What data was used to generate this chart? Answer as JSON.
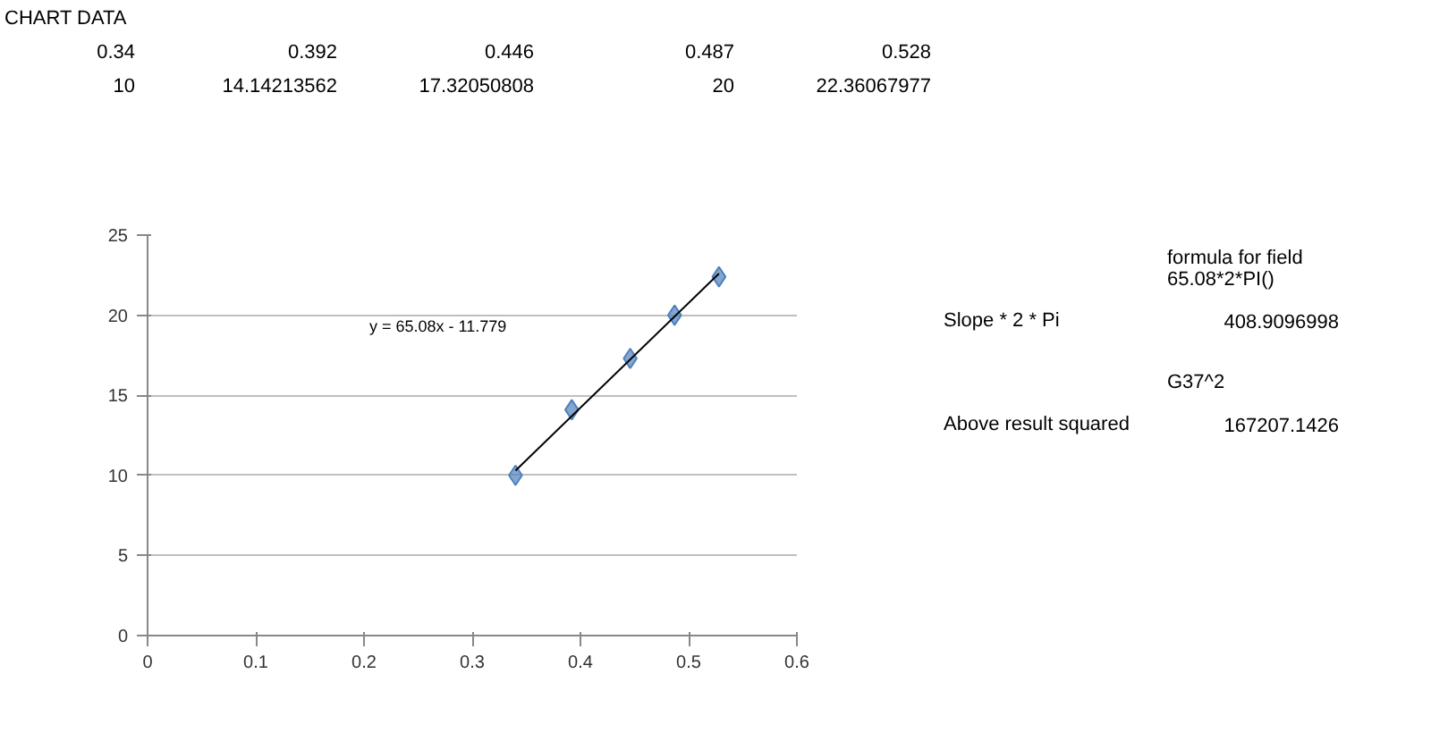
{
  "chart_data": {
    "type": "scatter",
    "title": "CHART DATA",
    "x": [
      0.34,
      0.392,
      0.446,
      0.487,
      0.528
    ],
    "series": [
      {
        "color": "#4f81bd",
        "values": [
          10,
          14.1,
          17.3,
          20,
          22.4
        ],
        "marker": "diamond"
      },
      {
        "type": "line",
        "color": "#000000",
        "x": [
          0.34,
          0.528
        ],
        "values": [
          10.3,
          22.6
        ],
        "marker": "none"
      }
    ],
    "xlim": [
      0,
      0.6
    ],
    "xticks": [
      0,
      0.1,
      0.2,
      0.3,
      0.4,
      0.5,
      0.6
    ],
    "ylim": [
      0,
      25
    ],
    "yticks": [
      0,
      5,
      10,
      15,
      20,
      25
    ],
    "grid": "y",
    "annotations": [
      "0.34",
      "0.392",
      "0.446",
      "0.487",
      "0.528",
      "10",
      "14.14213562",
      "17.32050808",
      "20",
      "22.36067977",
      "y = 65.08x  - 11.779",
      "formula for field",
      "65.08*2*PI()",
      "Slope * 2 * Pi",
      "408.9096998",
      "G37^2",
      "Above result squared",
      "167207.1426"
    ]
  }
}
